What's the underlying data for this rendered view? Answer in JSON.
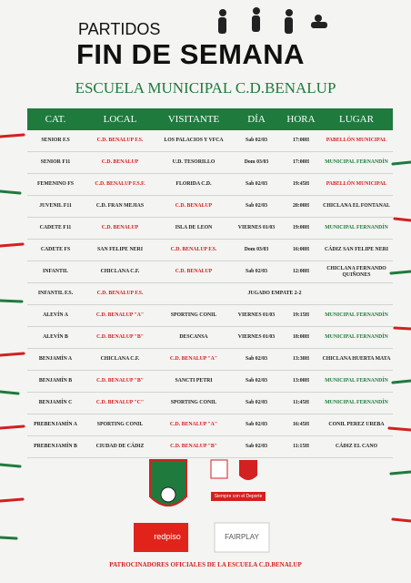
{
  "header": {
    "title_small": "PARTIDOS",
    "title": "FIN DE SEMANA",
    "subtitle": "ESCUELA MUNICIPAL C.D.BENALUP"
  },
  "table": {
    "columns": [
      "CAT.",
      "LOCAL",
      "VISITANTE",
      "DÍA",
      "HORA",
      "LUGAR"
    ],
    "rows": [
      [
        "SENIOR F.S",
        "C.D. BENALUP F.S.",
        "LOS PALACIOS Y VFCA",
        "Sab 02/03",
        "17:00H",
        "PABELLÓN MUNICIPAL"
      ],
      [
        "SENIOR F11",
        "C.D. BENALUP",
        "U.D. TESORILLO",
        "Dom 03/03",
        "17:00H",
        "MUNICIPAL FERNANDÍN"
      ],
      [
        "FEMENINO FS",
        "C.D. BENALUP F.S.F.",
        "FLORIDA C.D.",
        "Sab 02/03",
        "19:45H",
        "PABELLÓN MUNICIPAL"
      ],
      [
        "JUVENIL F11",
        "C.D. FRAN MEJIAS",
        "C.D. BENALUP",
        "Sab 02/03",
        "20:00H",
        "CHICLANA EL FONTANAL"
      ],
      [
        "CADETE F11",
        "C.D. BENALUP",
        "ISLA DE LEON",
        "VIERNES 01/03",
        "19:00H",
        "MUNICIPAL FERNANDÍN"
      ],
      [
        "CADETE FS",
        "SAN FELIPE NERI",
        "C.D. BENALUP F.S.",
        "Dom 03/03",
        "16:00H",
        "CÁDIZ SAN FELIPE NERI"
      ],
      [
        "INFANTIL",
        "CHICLANA C.F.",
        "C.D. BENALUP",
        "Sab 02/03",
        "12:00H",
        "CHICLANA FERNANDO QUIÑONES"
      ],
      [
        "INFANTIL F.S.",
        "C.D. BENALUP F.S.",
        "JUGADO EMPATE 2-2"
      ],
      [
        "ALEVÍN A",
        "C.D. BENALUP \"A\"",
        "SPORTING CONIL",
        "VIERNES 01/03",
        "19:15H",
        "MUNICIPAL FERNANDÍN"
      ],
      [
        "ALEVÍN B",
        "C.D. BENALUP \"B\"",
        "DESCANSA",
        "VIERNES 01/03",
        "18:00H",
        "MUNICIPAL FERNANDÍN"
      ],
      [
        "BENJAMÍN A",
        "CHICLANA C.F.",
        "C.D. BENALUP \"A\"",
        "Sab 02/03",
        "13:30H",
        "CHICLANA HUERTA MATA"
      ],
      [
        "BENJAMÍN B",
        "C.D. BENALUP \"B\"",
        "SANCTI PETRI",
        "Sab 02/03",
        "13:00H",
        "MUNICIPAL FERNANDÍN"
      ],
      [
        "BENJAMÍN C",
        "C.D. BENALUP \"C\"",
        "SPORTING CONIL",
        "Sab 02/03",
        "11:45H",
        "MUNICIPAL FERNANDÍN"
      ],
      [
        "PREBENJAMÍN A",
        "SPORTING CONIL",
        "C.D. BENALUP \"A\"",
        "Sab 02/03",
        "16:45H",
        "CONIL PEREZ UREBA"
      ],
      [
        "PREBENJAMÍN B",
        "CIUDAD DE CÁDIZ",
        "C.D. BENALUP \"B\"",
        "Sab 02/03",
        "11:15H",
        "CÁDIZ EL CANO"
      ]
    ]
  },
  "sponsors": {
    "slogan": "Siempre con el Deporte",
    "redpiso": "redpiso",
    "fairplay": "FAIRPLAY",
    "footer": "PATROCINADORES OFICIALES DE LA ESCUELA C.D.BENALUP"
  }
}
